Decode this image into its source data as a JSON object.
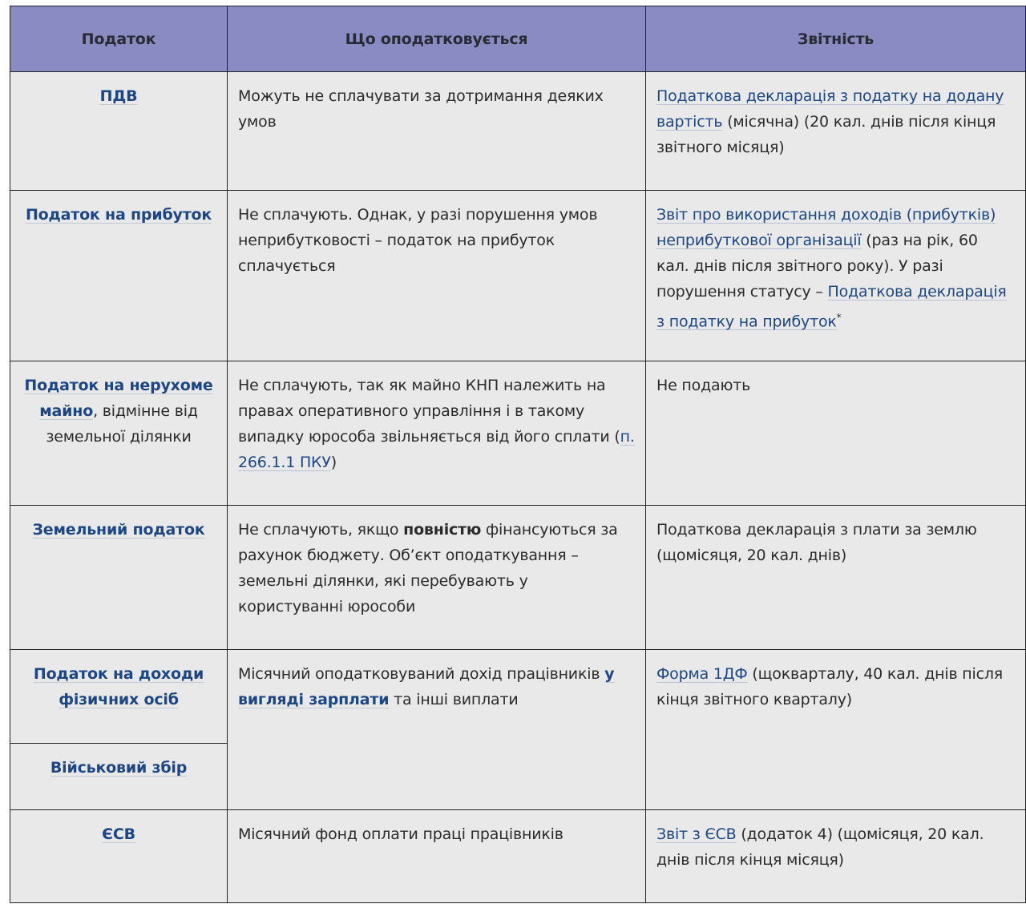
{
  "header": {
    "col1": "Податок",
    "col2": "Що оподатковується",
    "col3": "Звітність"
  },
  "colors": {
    "header_bg": "#8b8bc4",
    "cell_bg": "#e9e9e9",
    "link": "#1d4684"
  },
  "rows": [
    {
      "tax": "ПДВ",
      "what": "Можуть не сплачувати за дотримання деяких умов",
      "report_link": "Податкова декларація з податку на додану вартість",
      "report_rest": " (місячна) (20 кал. днів після кінця звітного місяця)"
    },
    {
      "tax": "Податок на прибуток",
      "what": "Не сплачують. Однак, у разі порушення умов неприбутковості – податок на прибуток сплачується",
      "report_link1": "Звіт про використання доходів (прибутків) неприбуткової організації",
      "report_mid": " (раз на рік, 60 кал. днів після звітного року). У разі порушення статусу – ",
      "report_link2": "Податкова декларація з податку на прибуток",
      "report_star": "*"
    },
    {
      "tax_link": "Податок на нерухоме майно",
      "tax_rest": ", відмінне від земельної ділянки",
      "what": "Не сплачують, так як майно КНП належить на правах оперативного управління і в такому випадку юрособа звільняється від його сплати (",
      "what_link": "п. 266.1.1 ПКУ",
      "what_end": ")",
      "report": "Не подають"
    },
    {
      "tax": "Земельний податок",
      "what_a": "Не сплачують, якщо ",
      "what_bold": "повністю",
      "what_b": " фінансуються за рахунок бюджету. Об’єкт оподаткування – земельні ділянки, які перебувають у користуванні юрособи",
      "report": "Податкова декларація з плати за землю (щомісяця, 20 кал. днів)"
    },
    {
      "tax": "Податок на доходи фізичних осіб",
      "tax2": "Військовий збір",
      "what_a": "Місячний оподатковуваний дохід працівників ",
      "what_link": "у вигляді зарплати",
      "what_b": " та інші виплати",
      "report_link": "Форма 1ДФ",
      "report_rest": " (щокварталу, 40 кал. днів після кінця звітного кварталу)"
    },
    {
      "tax": "ЄСВ",
      "what": "Місячний фонд оплати праці працівників",
      "report_link": "Звіт з ЄСВ",
      "report_rest": " (додаток 4) (щомісяця, 20 кал. днів після кінця місяця)"
    }
  ]
}
